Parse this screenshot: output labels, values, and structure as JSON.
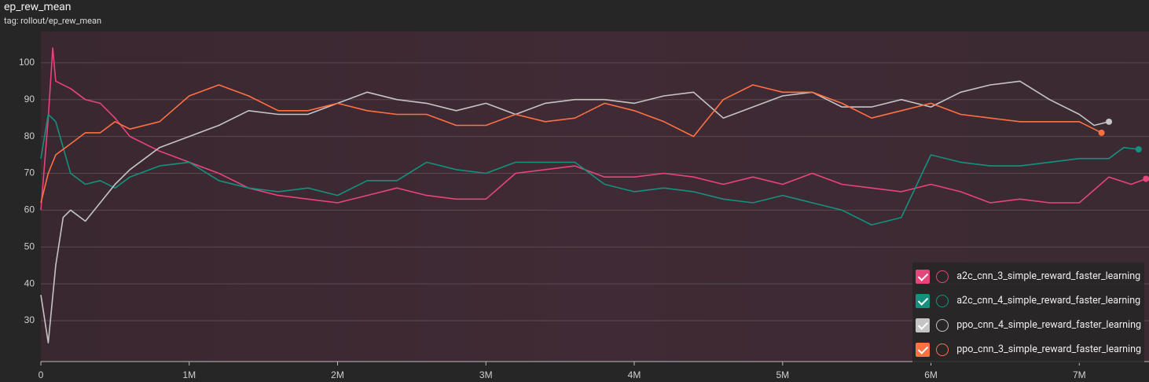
{
  "chart_data": {
    "type": "line",
    "title": "ep_rew_mean",
    "subtitle": "tag: rollout/ep_rew_mean",
    "xlim": [
      0,
      7470000
    ],
    "ylim": [
      18.9,
      108.5
    ],
    "xticks": [
      0,
      {
        "value": 1000000,
        "label": "1M"
      },
      {
        "value": 2000000,
        "label": "2M"
      },
      {
        "value": 3000000,
        "label": "3M"
      },
      {
        "value": 4000000,
        "label": "4M"
      },
      {
        "value": 5000000,
        "label": "5M"
      },
      {
        "value": 6000000,
        "label": "6M"
      },
      {
        "value": 7000000,
        "label": "7M"
      }
    ],
    "yticks": [
      30,
      40,
      50,
      60,
      70,
      80,
      90,
      100
    ],
    "grid": true,
    "legend": "bottom-right",
    "series": [
      {
        "name": "a2c_cnn_3_simple_reward_faster_learning",
        "color": "#e8447c",
        "x": [
          0,
          50000,
          80000,
          100000,
          200000,
          300000,
          400000,
          500000,
          600000,
          800000,
          1000000,
          1200000,
          1400000,
          1600000,
          1800000,
          2000000,
          2200000,
          2400000,
          2600000,
          2800000,
          3000000,
          3200000,
          3400000,
          3600000,
          3800000,
          4000000,
          4200000,
          4400000,
          4600000,
          4800000,
          5000000,
          5200000,
          5400000,
          5600000,
          5800000,
          6000000,
          6200000,
          6400000,
          6600000,
          6800000,
          7000000,
          7200000,
          7350000,
          7450000
        ],
        "values": [
          60,
          85,
          104,
          95,
          93,
          90,
          89,
          85,
          80,
          76,
          73,
          70,
          66,
          64,
          63,
          62,
          64,
          66,
          64,
          63,
          63,
          70,
          71,
          72,
          69,
          69,
          70,
          69,
          67,
          69,
          67,
          70,
          67,
          66,
          65,
          67,
          65,
          62,
          63,
          62,
          62,
          69,
          67,
          68.5
        ]
      },
      {
        "name": "a2c_cnn_4_simple_reward_faster_learning",
        "color": "#14917e",
        "x": [
          0,
          50000,
          100000,
          200000,
          300000,
          400000,
          500000,
          600000,
          800000,
          1000000,
          1200000,
          1400000,
          1600000,
          1800000,
          2000000,
          2200000,
          2400000,
          2600000,
          2800000,
          3000000,
          3200000,
          3400000,
          3600000,
          3800000,
          4000000,
          4200000,
          4400000,
          4600000,
          4800000,
          5000000,
          5200000,
          5400000,
          5600000,
          5800000,
          6000000,
          6200000,
          6400000,
          6600000,
          6800000,
          7000000,
          7200000,
          7300000,
          7400000
        ],
        "values": [
          74,
          86,
          84,
          70,
          67,
          68,
          66,
          69,
          72,
          73,
          68,
          66,
          65,
          66,
          64,
          68,
          68,
          73,
          71,
          70,
          73,
          73,
          73,
          67,
          65,
          66,
          65,
          63,
          62,
          64,
          62,
          60,
          56,
          58,
          75,
          73,
          72,
          72,
          73,
          74,
          74,
          77,
          76.5
        ]
      },
      {
        "name": "ppo_cnn_4_simple_reward_faster_learning",
        "color": "#c4c4c4",
        "x": [
          0,
          50000,
          100000,
          150000,
          200000,
          300000,
          400000,
          500000,
          600000,
          800000,
          1000000,
          1200000,
          1400000,
          1600000,
          1800000,
          2000000,
          2200000,
          2400000,
          2600000,
          2800000,
          3000000,
          3200000,
          3400000,
          3600000,
          3800000,
          4000000,
          4200000,
          4400000,
          4600000,
          4800000,
          5000000,
          5200000,
          5400000,
          5600000,
          5800000,
          6000000,
          6200000,
          6400000,
          6600000,
          6800000,
          7000000,
          7100000,
          7200000
        ],
        "values": [
          37,
          24,
          45,
          58,
          60,
          57,
          62,
          67,
          71,
          77,
          80,
          83,
          87,
          86,
          86,
          89,
          92,
          90,
          89,
          87,
          89,
          86,
          89,
          90,
          90,
          89,
          91,
          92,
          85,
          88,
          91,
          92,
          88,
          88,
          90,
          88,
          92,
          94,
          95,
          90,
          86,
          83,
          84
        ]
      },
      {
        "name": "ppo_cnn_3_simple_reward_faster_learning",
        "color": "#ff7043",
        "x": [
          0,
          50000,
          100000,
          200000,
          300000,
          400000,
          500000,
          600000,
          800000,
          1000000,
          1200000,
          1400000,
          1600000,
          1800000,
          2000000,
          2200000,
          2400000,
          2600000,
          2800000,
          3000000,
          3200000,
          3400000,
          3600000,
          3800000,
          4000000,
          4200000,
          4400000,
          4600000,
          4800000,
          5000000,
          5200000,
          5400000,
          5600000,
          5800000,
          6000000,
          6200000,
          6400000,
          6600000,
          6800000,
          7000000,
          7150000
        ],
        "values": [
          62,
          70,
          75,
          78,
          81,
          81,
          84,
          82,
          84,
          91,
          94,
          91,
          87,
          87,
          89,
          87,
          86,
          86,
          83,
          83,
          86,
          84,
          85,
          89,
          87,
          84,
          80,
          90,
          94,
          92,
          92,
          89,
          85,
          87,
          89,
          86,
          85,
          84,
          84,
          84,
          81
        ]
      }
    ]
  }
}
